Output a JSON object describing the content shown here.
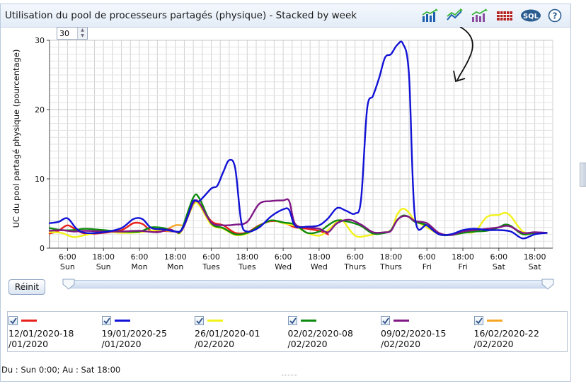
{
  "title": "Utilisation du pool de processeurs partagés (physique) - Stacked by week",
  "toolbar": {
    "icons": [
      "bar-chart-icon",
      "line-chart-icon",
      "combo-chart-icon",
      "table-icon",
      "sql-icon",
      "help-icon"
    ],
    "sql_label": "SQL",
    "help_label": "?"
  },
  "points_input": {
    "value": "30"
  },
  "reset_button": {
    "label": "Réinit"
  },
  "footer": {
    "range_text": "Du : Sun 0:00; Au : Sat 18:00"
  },
  "legend": [
    {
      "label": "12/01/2020-18\n/01/2020",
      "color": "#e8201c",
      "checked": true
    },
    {
      "label": "19/01/2020-25\n/01/2020",
      "color": "#1212d6",
      "checked": true
    },
    {
      "label": "26/01/2020-01\n/02/2020",
      "color": "#f2f21a",
      "checked": true
    },
    {
      "label": "02/02/2020-08\n/02/2020",
      "color": "#0d8a0d",
      "checked": true
    },
    {
      "label": "09/02/2020-15\n/02/2020",
      "color": "#7f1785",
      "checked": true
    },
    {
      "label": "16/02/2020-22\n/02/2020",
      "color": "#f5a623",
      "checked": true
    }
  ],
  "chart_data": {
    "type": "line",
    "title": "Utilisation du pool de processeurs partagés (physique) - Stacked by week",
    "xlabel": "",
    "ylabel": "UC du pool partagé physique (pourcentage)",
    "xlim": [
      0,
      168
    ],
    "ylim": [
      0,
      30
    ],
    "yticks": [
      0,
      10,
      20,
      30
    ],
    "xticks": [
      {
        "t": 6,
        "l1": "6:00",
        "l2": "Sun"
      },
      {
        "t": 18,
        "l1": "18:00",
        "l2": "Sun"
      },
      {
        "t": 30,
        "l1": "6:00",
        "l2": "Mon"
      },
      {
        "t": 42,
        "l1": "18:00",
        "l2": "Mon"
      },
      {
        "t": 54,
        "l1": "6:00",
        "l2": "Tues"
      },
      {
        "t": 66,
        "l1": "18:00",
        "l2": "Tues"
      },
      {
        "t": 78,
        "l1": "6:00",
        "l2": "Wed"
      },
      {
        "t": 90,
        "l1": "18:00",
        "l2": "Wed"
      },
      {
        "t": 102,
        "l1": "6:00",
        "l2": "Thurs"
      },
      {
        "t": 114,
        "l1": "18:00",
        "l2": "Thurs"
      },
      {
        "t": 126,
        "l1": "6:00",
        "l2": "Fri"
      },
      {
        "t": 138,
        "l1": "18:00",
        "l2": "Fri"
      },
      {
        "t": 150,
        "l1": "6:00",
        "l2": "Sat"
      },
      {
        "t": 162,
        "l1": "18:00",
        "l2": "Sat"
      }
    ],
    "grid": true,
    "series": [
      {
        "name": "12/01/2020-18/01/2020",
        "color": "#e8201c",
        "points": [
          [
            0,
            2.1
          ],
          [
            3,
            2.5
          ],
          [
            6,
            3.3
          ],
          [
            9,
            2.6
          ],
          [
            12,
            2.1
          ],
          [
            18,
            2.2
          ],
          [
            24,
            2.6
          ],
          [
            28,
            3.6
          ],
          [
            31,
            3.5
          ],
          [
            34,
            2.5
          ],
          [
            38,
            2.5
          ],
          [
            42,
            2.4
          ],
          [
            44,
            2.5
          ],
          [
            48,
            6.4
          ],
          [
            50,
            6.5
          ],
          [
            54,
            3.9
          ],
          [
            58,
            3.3
          ],
          [
            62,
            2.2
          ],
          [
            66,
            2.3
          ],
          [
            70,
            3.3
          ],
          [
            74,
            3.9
          ],
          [
            78,
            3.7
          ],
          [
            82,
            3.0
          ],
          [
            86,
            2.8
          ],
          [
            90,
            2.5
          ],
          [
            93,
            2.0
          ]
        ]
      },
      {
        "name": "19/01/2020-25/01/2020",
        "color": "#1212d6",
        "points": [
          [
            0,
            3.6
          ],
          [
            3,
            3.8
          ],
          [
            6,
            4.3
          ],
          [
            9,
            2.8
          ],
          [
            12,
            2.2
          ],
          [
            18,
            2.3
          ],
          [
            24,
            2.9
          ],
          [
            28,
            4.2
          ],
          [
            31,
            4.2
          ],
          [
            34,
            2.9
          ],
          [
            38,
            2.7
          ],
          [
            42,
            2.4
          ],
          [
            44,
            2.6
          ],
          [
            46,
            4.5
          ],
          [
            48,
            6.8
          ],
          [
            50,
            6.8
          ],
          [
            54,
            8.6
          ],
          [
            56,
            9.0
          ],
          [
            58,
            11.0
          ],
          [
            60,
            12.7
          ],
          [
            62,
            11.5
          ],
          [
            64,
            3.8
          ],
          [
            66,
            2.4
          ],
          [
            70,
            3.0
          ],
          [
            74,
            4.6
          ],
          [
            78,
            5.6
          ],
          [
            80,
            5.5
          ],
          [
            82,
            3.2
          ],
          [
            86,
            3.1
          ],
          [
            90,
            3.3
          ],
          [
            93,
            4.3
          ],
          [
            96,
            5.8
          ],
          [
            99,
            5.4
          ],
          [
            102,
            5.0
          ],
          [
            104,
            7.0
          ],
          [
            106,
            20.0
          ],
          [
            108,
            22.0
          ],
          [
            110,
            24.5
          ],
          [
            112,
            27.5
          ],
          [
            114,
            28.0
          ],
          [
            116,
            29.3
          ],
          [
            118,
            29.5
          ],
          [
            120,
            25.0
          ],
          [
            122,
            4.5
          ],
          [
            126,
            3.3
          ],
          [
            130,
            2.0
          ],
          [
            134,
            2.0
          ],
          [
            138,
            2.6
          ],
          [
            142,
            2.8
          ],
          [
            146,
            2.6
          ],
          [
            150,
            2.6
          ],
          [
            154,
            2.4
          ],
          [
            158,
            1.4
          ],
          [
            162,
            2.0
          ],
          [
            166,
            2.2
          ]
        ]
      },
      {
        "name": "26/01/2020-01/02/2020",
        "color": "#f2f21a",
        "points": [
          [
            0,
            2.3
          ],
          [
            4,
            2.2
          ],
          [
            8,
            1.6
          ],
          [
            12,
            1.9
          ],
          [
            18,
            2.4
          ],
          [
            24,
            2.2
          ],
          [
            30,
            2.3
          ],
          [
            36,
            2.6
          ],
          [
            40,
            2.5
          ],
          [
            42,
            2.4
          ],
          [
            44,
            2.4
          ],
          [
            48,
            6.2
          ],
          [
            50,
            6.2
          ],
          [
            54,
            3.4
          ],
          [
            58,
            2.8
          ],
          [
            62,
            1.9
          ],
          [
            66,
            2.1
          ],
          [
            70,
            3.2
          ],
          [
            74,
            4.0
          ],
          [
            78,
            3.6
          ],
          [
            82,
            3.2
          ],
          [
            86,
            2.2
          ],
          [
            90,
            1.8
          ],
          [
            93,
            2.6
          ],
          [
            96,
            3.8
          ],
          [
            98,
            3.9
          ],
          [
            102,
            1.8
          ],
          [
            106,
            1.8
          ],
          [
            110,
            2.2
          ],
          [
            114,
            2.6
          ],
          [
            116,
            4.8
          ],
          [
            118,
            5.7
          ],
          [
            120,
            5.1
          ],
          [
            122,
            4.0
          ],
          [
            126,
            3.0
          ],
          [
            130,
            2.0
          ],
          [
            134,
            1.9
          ],
          [
            138,
            2.3
          ],
          [
            142,
            2.4
          ],
          [
            146,
            4.5
          ],
          [
            150,
            4.8
          ],
          [
            152,
            5.1
          ],
          [
            154,
            4.6
          ],
          [
            158,
            2.4
          ],
          [
            162,
            2.2
          ],
          [
            166,
            2.2
          ]
        ]
      },
      {
        "name": "02/02/2020-08/02/2020",
        "color": "#0d8a0d",
        "points": [
          [
            0,
            2.9
          ],
          [
            4,
            2.6
          ],
          [
            8,
            2.6
          ],
          [
            12,
            2.8
          ],
          [
            18,
            2.6
          ],
          [
            24,
            2.4
          ],
          [
            30,
            2.4
          ],
          [
            34,
            3.0
          ],
          [
            38,
            2.9
          ],
          [
            42,
            2.4
          ],
          [
            44,
            2.6
          ],
          [
            48,
            7.3
          ],
          [
            50,
            7.2
          ],
          [
            54,
            3.6
          ],
          [
            58,
            2.9
          ],
          [
            62,
            2.0
          ],
          [
            66,
            2.2
          ],
          [
            70,
            3.2
          ],
          [
            74,
            4.0
          ],
          [
            78,
            3.7
          ],
          [
            82,
            3.4
          ],
          [
            86,
            2.2
          ],
          [
            90,
            2.4
          ],
          [
            93,
            3.3
          ],
          [
            96,
            4.0
          ],
          [
            100,
            3.8
          ],
          [
            104,
            3.2
          ],
          [
            108,
            2.1
          ],
          [
            112,
            2.2
          ],
          [
            114,
            2.6
          ],
          [
            116,
            4.0
          ],
          [
            118,
            4.7
          ],
          [
            120,
            4.5
          ],
          [
            122,
            3.8
          ],
          [
            126,
            3.3
          ],
          [
            130,
            2.0
          ],
          [
            134,
            1.9
          ],
          [
            138,
            2.2
          ],
          [
            142,
            2.4
          ],
          [
            146,
            2.5
          ],
          [
            150,
            3.0
          ],
          [
            152,
            3.4
          ],
          [
            154,
            3.2
          ],
          [
            158,
            2.0
          ],
          [
            162,
            2.2
          ],
          [
            166,
            2.2
          ]
        ]
      },
      {
        "name": "09/02/2020-15/02/2020",
        "color": "#7f1785",
        "points": [
          [
            0,
            2.5
          ],
          [
            4,
            2.6
          ],
          [
            8,
            2.4
          ],
          [
            12,
            2.5
          ],
          [
            18,
            2.4
          ],
          [
            24,
            2.4
          ],
          [
            30,
            2.5
          ],
          [
            36,
            2.3
          ],
          [
            40,
            2.7
          ],
          [
            44,
            2.5
          ],
          [
            48,
            6.5
          ],
          [
            50,
            6.5
          ],
          [
            54,
            3.7
          ],
          [
            58,
            3.3
          ],
          [
            62,
            3.4
          ],
          [
            66,
            3.8
          ],
          [
            70,
            6.4
          ],
          [
            74,
            6.8
          ],
          [
            78,
            6.9
          ],
          [
            80,
            6.8
          ],
          [
            82,
            3.5
          ],
          [
            86,
            3.0
          ],
          [
            90,
            2.8
          ],
          [
            93,
            2.3
          ],
          [
            96,
            3.6
          ],
          [
            100,
            4.1
          ],
          [
            104,
            3.4
          ],
          [
            108,
            2.3
          ],
          [
            112,
            2.3
          ],
          [
            114,
            2.5
          ],
          [
            116,
            4.0
          ],
          [
            118,
            4.6
          ],
          [
            120,
            4.5
          ],
          [
            122,
            3.9
          ],
          [
            126,
            3.6
          ],
          [
            130,
            2.2
          ],
          [
            134,
            1.9
          ],
          [
            138,
            2.4
          ],
          [
            142,
            2.6
          ],
          [
            146,
            2.8
          ],
          [
            150,
            3.0
          ],
          [
            152,
            3.2
          ],
          [
            154,
            3.1
          ],
          [
            158,
            2.2
          ],
          [
            162,
            2.3
          ],
          [
            166,
            2.2
          ]
        ]
      },
      {
        "name": "16/02/2020-22/02/2020",
        "color": "#f5a623",
        "points": [
          [
            36,
            2.4
          ],
          [
            39,
            2.7
          ],
          [
            42,
            3.3
          ],
          [
            44,
            3.3
          ]
        ]
      }
    ]
  }
}
